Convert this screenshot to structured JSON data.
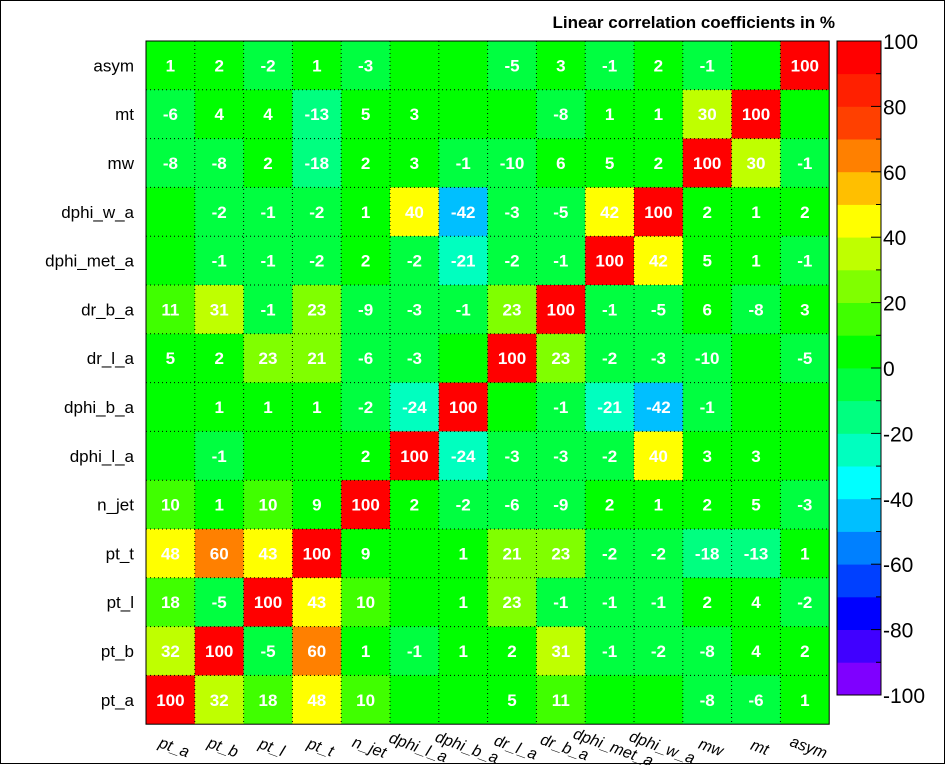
{
  "chart_data": {
    "type": "heatmap",
    "title": "Linear correlation coefficients in %",
    "x_categories": [
      "pt_a",
      "pt_b",
      "pt_l",
      "pt_t",
      "n_jet",
      "dphi_l_a",
      "dphi_b_a",
      "dr_l_a",
      "dr_b_a",
      "dphi_met_a",
      "dphi_w_a",
      "mw",
      "mt",
      "asym"
    ],
    "y_categories": [
      "asym",
      "mt",
      "mw",
      "dphi_w_a",
      "dphi_met_a",
      "dr_b_a",
      "dr_l_a",
      "dphi_b_a",
      "dphi_l_a",
      "n_jet",
      "pt_t",
      "pt_l",
      "pt_b",
      "pt_a"
    ],
    "values": [
      [
        1,
        2,
        -2,
        1,
        -3,
        null,
        null,
        -5,
        3,
        -1,
        2,
        -1,
        null,
        100
      ],
      [
        -6,
        4,
        4,
        -13,
        5,
        3,
        null,
        null,
        -8,
        1,
        1,
        30,
        100,
        null
      ],
      [
        -8,
        -8,
        2,
        -18,
        2,
        3,
        -1,
        -10,
        6,
        5,
        2,
        100,
        30,
        -1
      ],
      [
        null,
        -2,
        -1,
        -2,
        1,
        40,
        -42,
        -3,
        -5,
        42,
        100,
        2,
        1,
        2
      ],
      [
        null,
        -1,
        -1,
        -2,
        2,
        -2,
        -21,
        -2,
        -1,
        100,
        42,
        5,
        1,
        -1
      ],
      [
        11,
        31,
        -1,
        23,
        -9,
        -3,
        -1,
        23,
        100,
        -1,
        -5,
        6,
        -8,
        3
      ],
      [
        5,
        2,
        23,
        21,
        -6,
        -3,
        null,
        100,
        23,
        -2,
        -3,
        -10,
        null,
        -5
      ],
      [
        null,
        1,
        1,
        1,
        -2,
        -24,
        100,
        null,
        -1,
        -21,
        -42,
        -1,
        null,
        null
      ],
      [
        null,
        -1,
        null,
        null,
        2,
        100,
        -24,
        -3,
        -3,
        -2,
        40,
        3,
        3,
        null
      ],
      [
        10,
        1,
        10,
        9,
        100,
        2,
        -2,
        -6,
        -9,
        2,
        1,
        2,
        5,
        -3
      ],
      [
        48,
        60,
        43,
        100,
        9,
        null,
        1,
        21,
        23,
        -2,
        -2,
        -18,
        -13,
        1
      ],
      [
        18,
        -5,
        100,
        43,
        10,
        null,
        1,
        23,
        -1,
        -1,
        -1,
        2,
        4,
        -2
      ],
      [
        32,
        100,
        -5,
        60,
        1,
        -1,
        1,
        2,
        31,
        -1,
        -2,
        -8,
        4,
        2
      ],
      [
        100,
        32,
        18,
        48,
        10,
        null,
        null,
        5,
        11,
        null,
        null,
        -8,
        -6,
        1
      ]
    ],
    "zlim": [
      -100,
      100
    ],
    "z_ticks": [
      100,
      80,
      60,
      40,
      20,
      0,
      -20,
      -40,
      -60,
      -80,
      -100
    ],
    "grid": true,
    "legend": "right color scale",
    "colors": {
      "zero_band": "#00ff00",
      "positive_max": "#ff0000",
      "negative_min": "#7f00ff"
    }
  }
}
